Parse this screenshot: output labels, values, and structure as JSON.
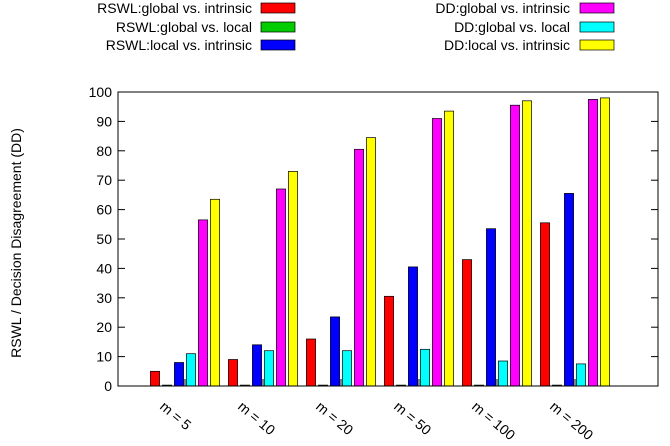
{
  "chart_data": {
    "type": "bar",
    "title": "",
    "xlabel": "",
    "ylabel": "RSWL / Decision Disagreement (DD)",
    "ylim": [
      0,
      100
    ],
    "yticks": [
      0,
      10,
      20,
      30,
      40,
      50,
      60,
      70,
      80,
      90,
      100
    ],
    "grid": false,
    "legend_position": "top",
    "categories": [
      "m = 5",
      "m = 10",
      "m = 20",
      "m = 50",
      "m = 100",
      "m = 200"
    ],
    "series": [
      {
        "name": "RSWL:global vs. intrinsic",
        "color": "#ff0000",
        "values": [
          5,
          9,
          16,
          30.5,
          43,
          55.5
        ]
      },
      {
        "name": "RSWL:global vs. local",
        "color": "#00cc00",
        "values": [
          0.3,
          0.3,
          0.3,
          0.3,
          0.3,
          0.3
        ]
      },
      {
        "name": "RSWL:local vs. intrinsic",
        "color": "#0000ff",
        "values": [
          8,
          14,
          23.5,
          40.5,
          53.5,
          65.5
        ]
      },
      {
        "name": "DD:global vs. local",
        "color": "#00ffff",
        "values": [
          11,
          12,
          12,
          12.5,
          8.5,
          7.5
        ]
      },
      {
        "name": "DD:global vs. intrinsic",
        "color": "#ff00ff",
        "values": [
          56.5,
          67,
          80.5,
          91,
          95.5,
          97.5
        ]
      },
      {
        "name": "DD:local vs. intrinsic",
        "color": "#ffff00",
        "values": [
          63.5,
          73,
          84.5,
          93.5,
          97,
          98
        ]
      }
    ]
  }
}
